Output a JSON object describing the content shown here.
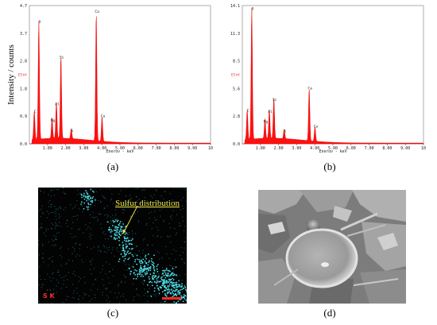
{
  "panels": {
    "a": "(a)",
    "b": "(b)",
    "c": "(c)",
    "d": "(d)"
  },
  "y_axis_label": "Intensity / counts",
  "map_c": {
    "annotation": "Sulfur distribution",
    "element_label": "S K"
  },
  "chart_data": [
    {
      "type": "line",
      "id": "a",
      "xlabel": "Energy - keV",
      "corner_label": "ECnt",
      "x_ticks": [
        "1.00",
        "2.00",
        "3.00",
        "4.00",
        "5.00",
        "6.00",
        "7.00",
        "8.00",
        "9.00",
        "10"
      ],
      "y_ticks": [
        "4.7",
        "3.7",
        "2.8",
        "1.8",
        "0.9",
        "0.0"
      ],
      "xlim": [
        0,
        10
      ],
      "ylim": [
        0,
        4.7
      ],
      "peaks": [
        {
          "label": "C",
          "x": 0.27,
          "y": 1.0
        },
        {
          "label": "O",
          "x": 0.52,
          "y": 4.05
        },
        {
          "label": "Mg",
          "x": 1.25,
          "y": 0.7
        },
        {
          "label": "Al",
          "x": 1.49,
          "y": 1.25
        },
        {
          "label": "Si",
          "x": 1.74,
          "y": 2.85
        },
        {
          "label": "S",
          "x": 2.31,
          "y": 0.35
        },
        {
          "label": "Ca",
          "x": 3.69,
          "y": 4.4
        },
        {
          "label": "Ca",
          "x": 4.01,
          "y": 0.85
        }
      ]
    },
    {
      "type": "line",
      "id": "b",
      "xlabel": "Energy - keV",
      "corner_label": "ECnt",
      "x_ticks": [
        "1.00",
        "2.00",
        "3.00",
        "4.00",
        "5.00",
        "6.00",
        "7.00",
        "8.00",
        "9.00",
        "10"
      ],
      "y_ticks": [
        "14.1",
        "11.3",
        "8.5",
        "5.6",
        "2.8",
        "0.0"
      ],
      "xlim": [
        0,
        10
      ],
      "ylim": [
        0,
        14.1
      ],
      "peaks": [
        {
          "label": "C",
          "x": 0.27,
          "y": 3.1
        },
        {
          "label": "O",
          "x": 0.52,
          "y": 13.5
        },
        {
          "label": "Mg",
          "x": 1.25,
          "y": 2.0
        },
        {
          "label": "Al",
          "x": 1.49,
          "y": 3.0
        },
        {
          "label": "Si",
          "x": 1.74,
          "y": 4.2
        },
        {
          "label": "S",
          "x": 2.31,
          "y": 1.0
        },
        {
          "label": "Ca",
          "x": 3.69,
          "y": 5.4
        },
        {
          "label": "Ca",
          "x": 4.01,
          "y": 1.5
        }
      ]
    }
  ]
}
